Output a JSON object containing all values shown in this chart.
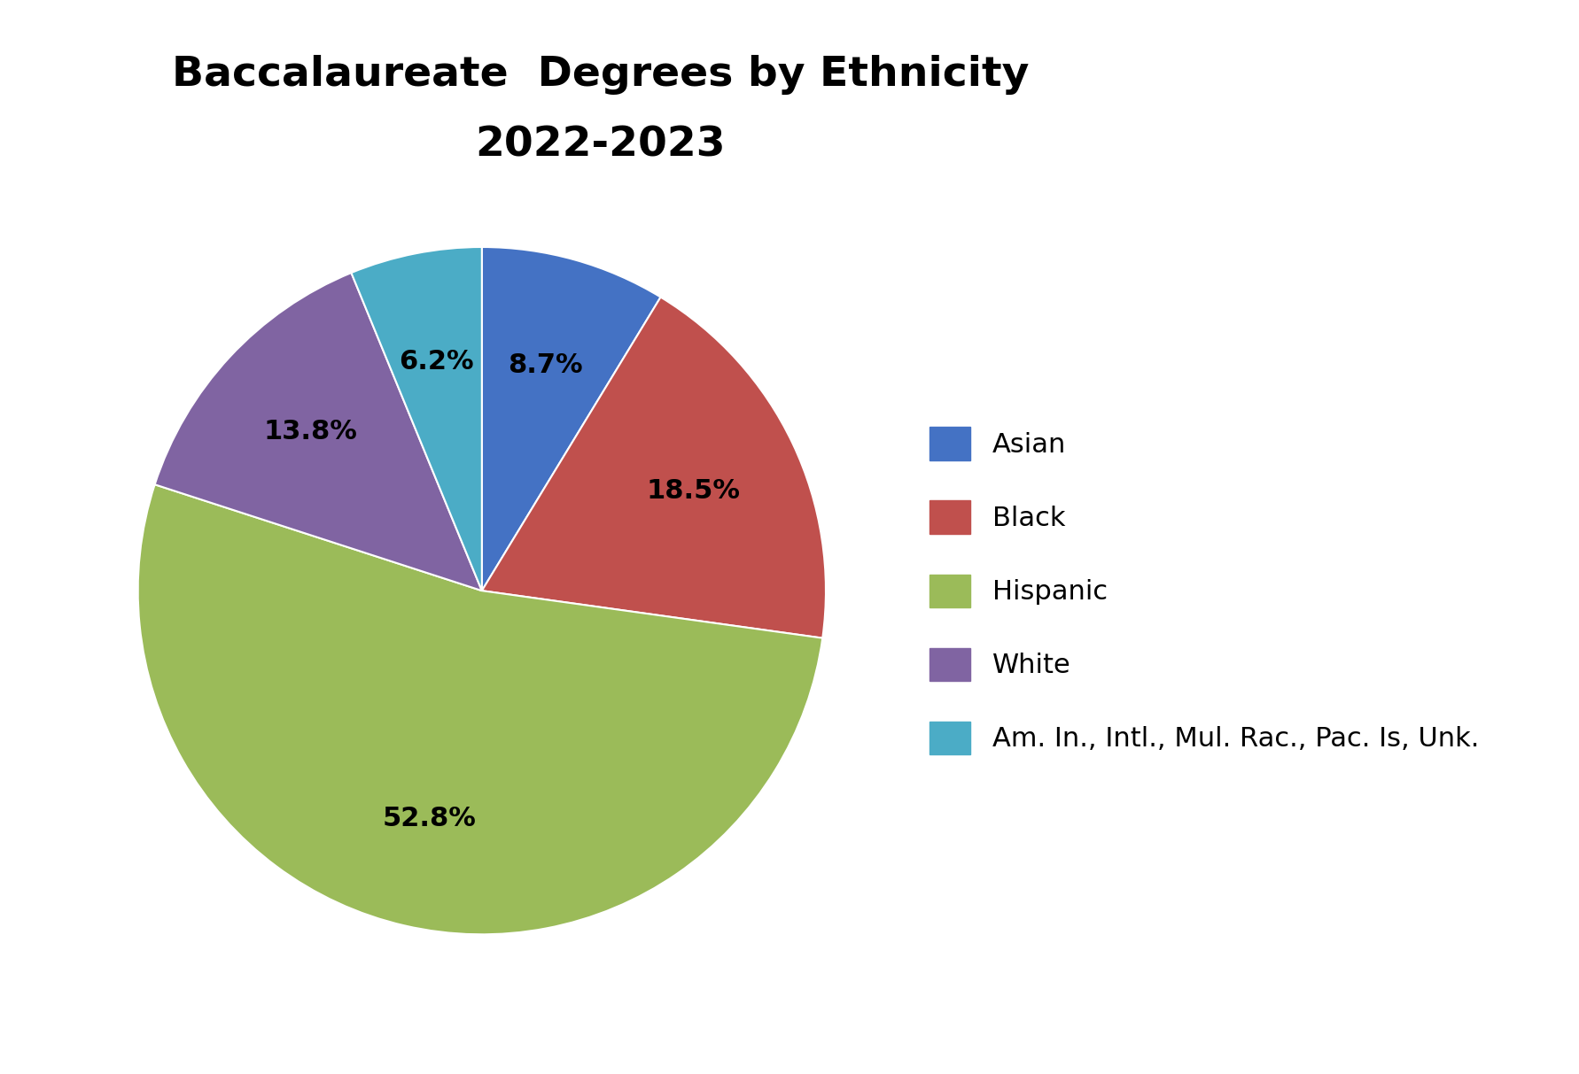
{
  "title_line1": "Baccalaureate  Degrees by Ethnicity",
  "title_line2": "2022-2023",
  "labels": [
    "Asian",
    "Black",
    "Hispanic",
    "White",
    "Am. In., Intl., Mul. Rac., Pac. Is, Unk."
  ],
  "values": [
    8.7,
    18.5,
    52.8,
    13.8,
    6.2
  ],
  "colors": [
    "#4472C4",
    "#C0504D",
    "#9BBB59",
    "#8064A2",
    "#4BACC6"
  ],
  "startangle": 90,
  "background_color": "#ffffff",
  "title_fontsize": 34,
  "label_fontsize": 22,
  "legend_fontsize": 22
}
